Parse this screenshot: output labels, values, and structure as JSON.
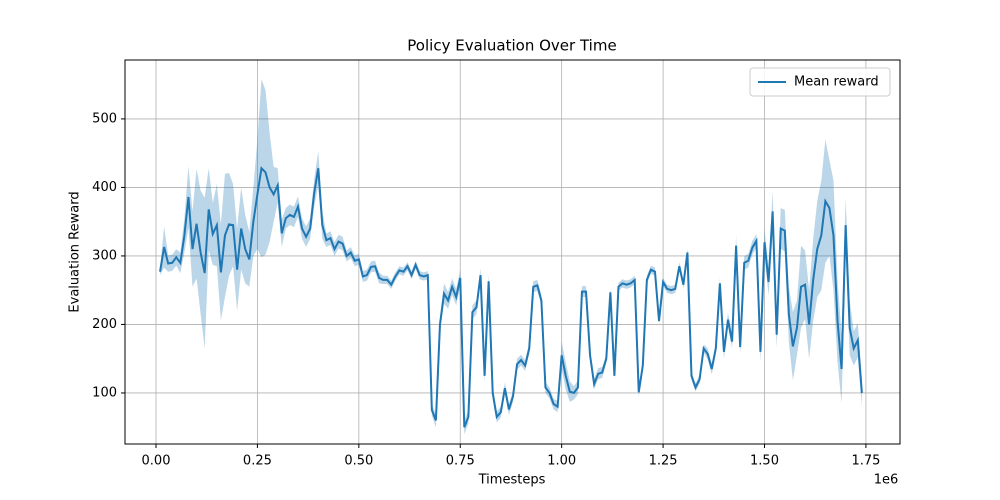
{
  "chart_data": {
    "type": "line",
    "title": "Policy Evaluation Over Time",
    "x_label": "Timesteps",
    "y_label": "Evaluation Reward",
    "x_offset_label": "1e6",
    "grid": true,
    "legend": "upper right",
    "band_opacity": 0.3,
    "xlim": [
      -76400,
      1834000
    ],
    "ylim": [
      25.5,
      586
    ],
    "xticks": [
      {
        "value": 0,
        "label": "0.00"
      },
      {
        "value": 250000,
        "label": "0.25"
      },
      {
        "value": 500000,
        "label": "0.50"
      },
      {
        "value": 750000,
        "label": "0.75"
      },
      {
        "value": 1000000,
        "label": "1.00"
      },
      {
        "value": 1250000,
        "label": "1.25"
      },
      {
        "value": 1500000,
        "label": "1.50"
      },
      {
        "value": 1750000,
        "label": "1.75"
      }
    ],
    "yticks": [
      100,
      200,
      300,
      400,
      500
    ],
    "x": [
      10000,
      20000,
      30000,
      40000,
      50000,
      60000,
      70000,
      80000,
      90000,
      100000,
      110000,
      120000,
      130000,
      140000,
      150000,
      160000,
      170000,
      180000,
      190000,
      200000,
      210000,
      220000,
      230000,
      240000,
      250000,
      260000,
      270000,
      280000,
      290000,
      300000,
      310000,
      320000,
      330000,
      340000,
      350000,
      360000,
      370000,
      380000,
      390000,
      400000,
      410000,
      420000,
      430000,
      440000,
      450000,
      460000,
      470000,
      480000,
      490000,
      500000,
      510000,
      520000,
      530000,
      540000,
      550000,
      560000,
      570000,
      580000,
      590000,
      600000,
      610000,
      620000,
      630000,
      640000,
      650000,
      660000,
      670000,
      680000,
      690000,
      700000,
      710000,
      720000,
      730000,
      740000,
      750000,
      760000,
      770000,
      780000,
      790000,
      800000,
      810000,
      820000,
      830000,
      840000,
      850000,
      860000,
      870000,
      880000,
      890000,
      900000,
      910000,
      920000,
      930000,
      940000,
      950000,
      960000,
      970000,
      980000,
      990000,
      1000000,
      1010000,
      1020000,
      1030000,
      1040000,
      1050000,
      1060000,
      1070000,
      1080000,
      1090000,
      1100000,
      1110000,
      1120000,
      1130000,
      1140000,
      1150000,
      1160000,
      1170000,
      1180000,
      1190000,
      1200000,
      1210000,
      1220000,
      1230000,
      1240000,
      1250000,
      1260000,
      1270000,
      1280000,
      1290000,
      1300000,
      1310000,
      1320000,
      1330000,
      1340000,
      1350000,
      1360000,
      1370000,
      1380000,
      1390000,
      1400000,
      1410000,
      1420000,
      1430000,
      1440000,
      1450000,
      1460000,
      1470000,
      1480000,
      1490000,
      1500000,
      1510000,
      1520000,
      1530000,
      1540000,
      1550000,
      1560000,
      1570000,
      1580000,
      1590000,
      1600000,
      1610000,
      1620000,
      1630000,
      1640000,
      1650000,
      1660000,
      1670000,
      1680000,
      1690000,
      1700000,
      1710000,
      1720000,
      1730000,
      1740000
    ],
    "series": [
      {
        "name": "Mean reward",
        "color": "#1f77b4",
        "values": [
          277,
          313,
          289,
          290,
          298,
          290,
          330,
          386,
          310,
          347,
          305,
          275,
          368,
          332,
          345,
          276,
          330,
          346,
          345,
          280,
          340,
          310,
          295,
          350,
          390,
          428,
          422,
          400,
          390,
          403,
          333,
          355,
          360,
          357,
          372,
          340,
          328,
          340,
          392,
          428,
          345,
          323,
          326,
          310,
          321,
          318,
          300,
          305,
          293,
          295,
          270,
          272,
          284,
          285,
          268,
          265,
          265,
          258,
          270,
          279,
          277,
          285,
          272,
          287,
          272,
          270,
          272,
          75,
          60,
          200,
          245,
          235,
          255,
          240,
          268,
          50,
          65,
          218,
          225,
          272,
          125,
          263,
          100,
          65,
          72,
          107,
          76,
          95,
          142,
          148,
          140,
          165,
          255,
          257,
          235,
          108,
          100,
          84,
          80,
          155,
          125,
          102,
          100,
          108,
          248,
          248,
          155,
          113,
          128,
          130,
          150,
          247,
          125,
          255,
          260,
          258,
          260,
          265,
          101,
          140,
          265,
          280,
          277,
          205,
          262,
          252,
          250,
          252,
          285,
          258,
          305,
          125,
          108,
          120,
          165,
          157,
          135,
          165,
          260,
          160,
          207,
          175,
          315,
          167,
          290,
          293,
          312,
          322,
          160,
          320,
          262,
          365,
          185,
          340,
          337,
          215,
          168,
          195,
          255,
          258,
          200,
          265,
          310,
          330,
          380,
          370,
          330,
          205,
          135,
          345,
          195,
          165,
          177,
          100
        ],
        "std": [
          5,
          30,
          12,
          12,
          12,
          15,
          25,
          45,
          55,
          80,
          90,
          110,
          60,
          45,
          60,
          70,
          90,
          75,
          60,
          60,
          60,
          50,
          40,
          50,
          80,
          130,
          120,
          80,
          40,
          25,
          20,
          15,
          15,
          15,
          15,
          15,
          15,
          15,
          20,
          25,
          20,
          10,
          10,
          10,
          10,
          10,
          8,
          8,
          8,
          8,
          8,
          8,
          8,
          8,
          8,
          6,
          6,
          6,
          6,
          6,
          6,
          6,
          6,
          6,
          6,
          6,
          6,
          8,
          10,
          10,
          15,
          12,
          12,
          12,
          12,
          10,
          10,
          10,
          10,
          10,
          10,
          10,
          10,
          8,
          8,
          8,
          8,
          8,
          8,
          8,
          8,
          8,
          8,
          8,
          8,
          8,
          8,
          8,
          8,
          20,
          20,
          15,
          10,
          10,
          8,
          8,
          8,
          8,
          8,
          8,
          6,
          6,
          6,
          6,
          6,
          6,
          6,
          6,
          6,
          6,
          6,
          6,
          6,
          6,
          6,
          6,
          6,
          6,
          6,
          6,
          6,
          6,
          6,
          6,
          6,
          8,
          8,
          8,
          8,
          10,
          10,
          10,
          15,
          10,
          10,
          10,
          10,
          10,
          15,
          20,
          20,
          30,
          20,
          30,
          30,
          40,
          50,
          40,
          60,
          50,
          50,
          60,
          70,
          80,
          90,
          70,
          80,
          60,
          50,
          40,
          40,
          25,
          25,
          20
        ]
      }
    ]
  }
}
